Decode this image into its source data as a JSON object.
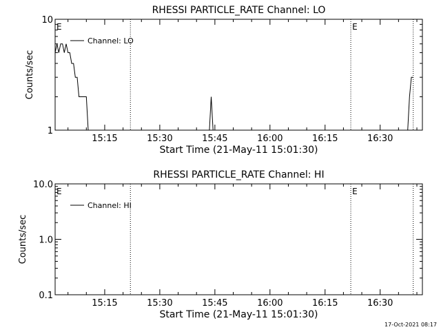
{
  "timestamp": "17-Oct-2021 08:17",
  "chart_data": [
    {
      "type": "line",
      "title": "RHESSI PARTICLE_RATE Channel: LO",
      "xlabel": "Start Time (21-May-11 15:01:30)",
      "ylabel": "Counts/sec",
      "yscale": "log",
      "ylim": [
        1,
        10
      ],
      "xlim": [
        "15:01:30",
        "16:41:30"
      ],
      "yticks": [
        {
          "value": 1,
          "label": "1"
        },
        {
          "value": 10,
          "label": "10"
        }
      ],
      "xticks": [
        "15:15",
        "15:30",
        "15:45",
        "16:00",
        "16:15",
        "16:30"
      ],
      "legend": {
        "label": "Channel: LO",
        "position": "top-left"
      },
      "eclipse_marker": "E",
      "eclipse_lines": [
        "15:22",
        "16:22",
        "16:39"
      ],
      "eclipse_labels": [
        "15:01:30",
        "16:22"
      ],
      "series": [
        {
          "name": "Channel: LO",
          "segments": [
            [
              [
                "15:01:30",
                5
              ],
              [
                "15:02",
                6
              ],
              [
                "15:02:30",
                5
              ],
              [
                "15:03",
                6
              ],
              [
                "15:03:30",
                6
              ],
              [
                "15:04",
                5
              ],
              [
                "15:04:30",
                6
              ],
              [
                "15:05",
                5
              ],
              [
                "15:05:30",
                5
              ],
              [
                "15:06",
                4
              ],
              [
                "15:06:30",
                4
              ],
              [
                "15:07",
                3
              ],
              [
                "15:07:30",
                3
              ],
              [
                "15:08",
                2
              ],
              [
                "15:09",
                2
              ],
              [
                "15:10",
                2
              ],
              [
                "15:10:30",
                1
              ]
            ],
            [
              [
                "15:43:30",
                1
              ],
              [
                "15:44",
                2
              ],
              [
                "15:44:30",
                1
              ]
            ],
            [
              [
                "16:37:30",
                1
              ],
              [
                "16:38",
                2
              ],
              [
                "16:38:30",
                3
              ],
              [
                "16:39",
                3
              ]
            ]
          ]
        }
      ]
    },
    {
      "type": "line",
      "title": "RHESSI PARTICLE_RATE Channel: HI",
      "xlabel": "Start Time (21-May-11 15:01:30)",
      "ylabel": "Counts/sec",
      "yscale": "log",
      "ylim": [
        0.1,
        10
      ],
      "xlim": [
        "15:01:30",
        "16:41:30"
      ],
      "yticks": [
        {
          "value": 0.1,
          "label": "0.1"
        },
        {
          "value": 1,
          "label": "1.0"
        },
        {
          "value": 10,
          "label": "10.0"
        }
      ],
      "xticks": [
        "15:15",
        "15:30",
        "15:45",
        "16:00",
        "16:15",
        "16:30"
      ],
      "legend": {
        "label": "Channel: HI",
        "position": "top-left"
      },
      "eclipse_marker": "E",
      "eclipse_lines": [
        "15:22",
        "16:22",
        "16:39"
      ],
      "eclipse_labels": [
        "15:01:30",
        "16:22"
      ],
      "series": [
        {
          "name": "Channel: HI",
          "segments": []
        }
      ]
    }
  ]
}
